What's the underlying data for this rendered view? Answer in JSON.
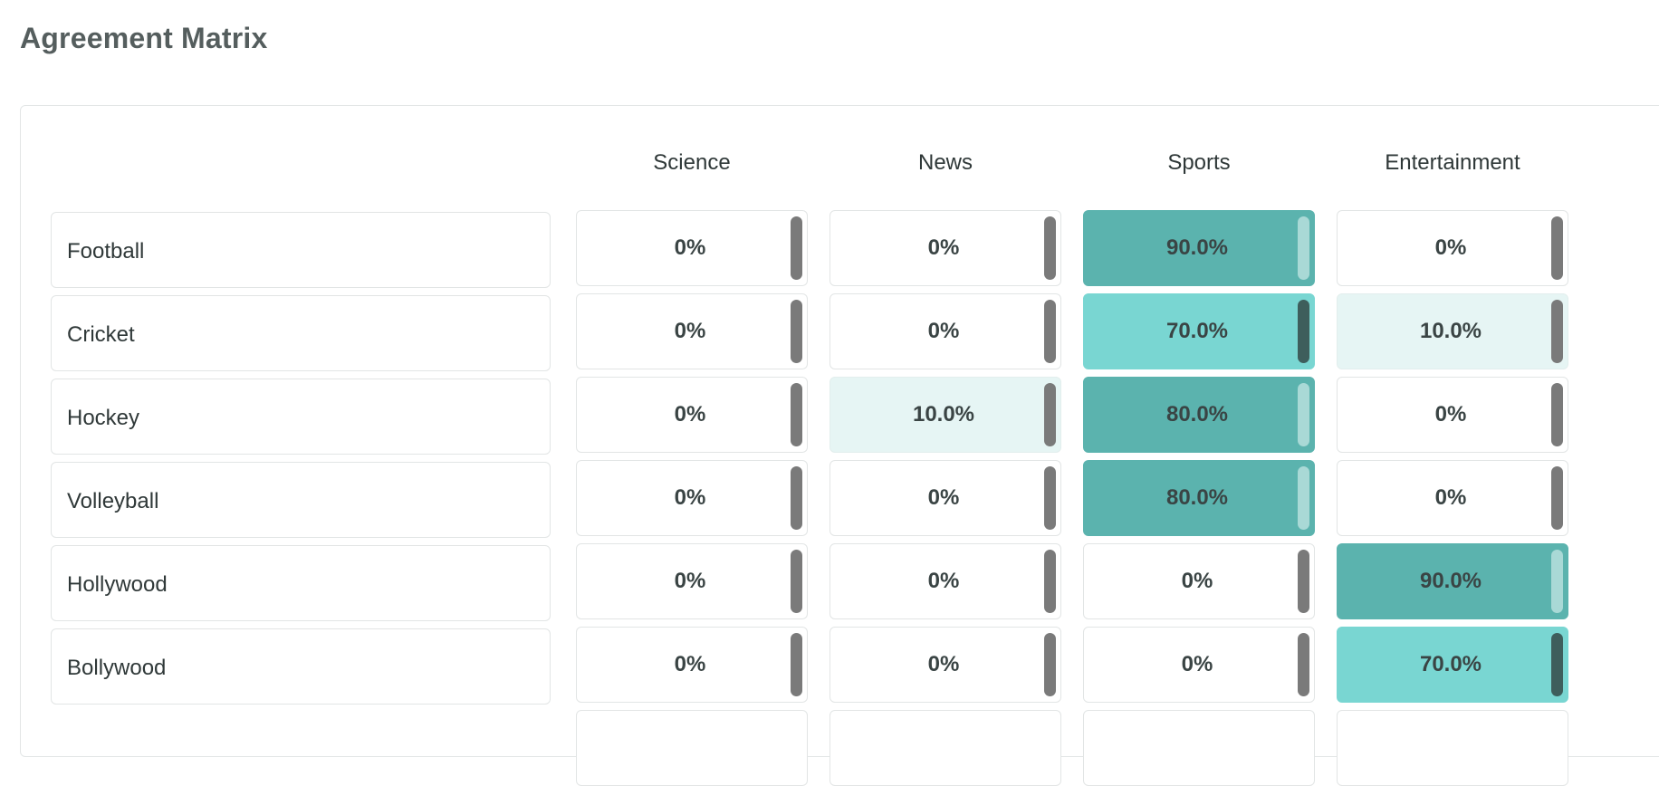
{
  "page": {
    "title": "Agreement Matrix"
  },
  "columns": [
    "Science",
    "News",
    "Sports",
    "Entertainment"
  ],
  "rows": [
    {
      "label": "Football",
      "cells": [
        {
          "text": "0%",
          "value": 0
        },
        {
          "text": "0%",
          "value": 0
        },
        {
          "text": "90.0%",
          "value": 90
        },
        {
          "text": "0%",
          "value": 0
        }
      ]
    },
    {
      "label": "Cricket",
      "cells": [
        {
          "text": "0%",
          "value": 0
        },
        {
          "text": "0%",
          "value": 0
        },
        {
          "text": "70.0%",
          "value": 70
        },
        {
          "text": "10.0%",
          "value": 10
        }
      ]
    },
    {
      "label": "Hockey",
      "cells": [
        {
          "text": "0%",
          "value": 0
        },
        {
          "text": "10.0%",
          "value": 10
        },
        {
          "text": "80.0%",
          "value": 80
        },
        {
          "text": "0%",
          "value": 0
        }
      ]
    },
    {
      "label": "Volleyball",
      "cells": [
        {
          "text": "0%",
          "value": 0
        },
        {
          "text": "0%",
          "value": 0
        },
        {
          "text": "80.0%",
          "value": 80
        },
        {
          "text": "0%",
          "value": 0
        }
      ]
    },
    {
      "label": "Hollywood",
      "cells": [
        {
          "text": "0%",
          "value": 0
        },
        {
          "text": "0%",
          "value": 0
        },
        {
          "text": "0%",
          "value": 0
        },
        {
          "text": "90.0%",
          "value": 90
        }
      ]
    },
    {
      "label": "Bollywood",
      "cells": [
        {
          "text": "0%",
          "value": 0
        },
        {
          "text": "0%",
          "value": 0
        },
        {
          "text": "0%",
          "value": 0
        },
        {
          "text": "70.0%",
          "value": 70
        }
      ]
    }
  ],
  "colors": {
    "level_low": "#e6f5f4",
    "level_mid": "#79d6d2",
    "level_high": "#5bb3ae",
    "handle": "#7a7a7a"
  }
}
